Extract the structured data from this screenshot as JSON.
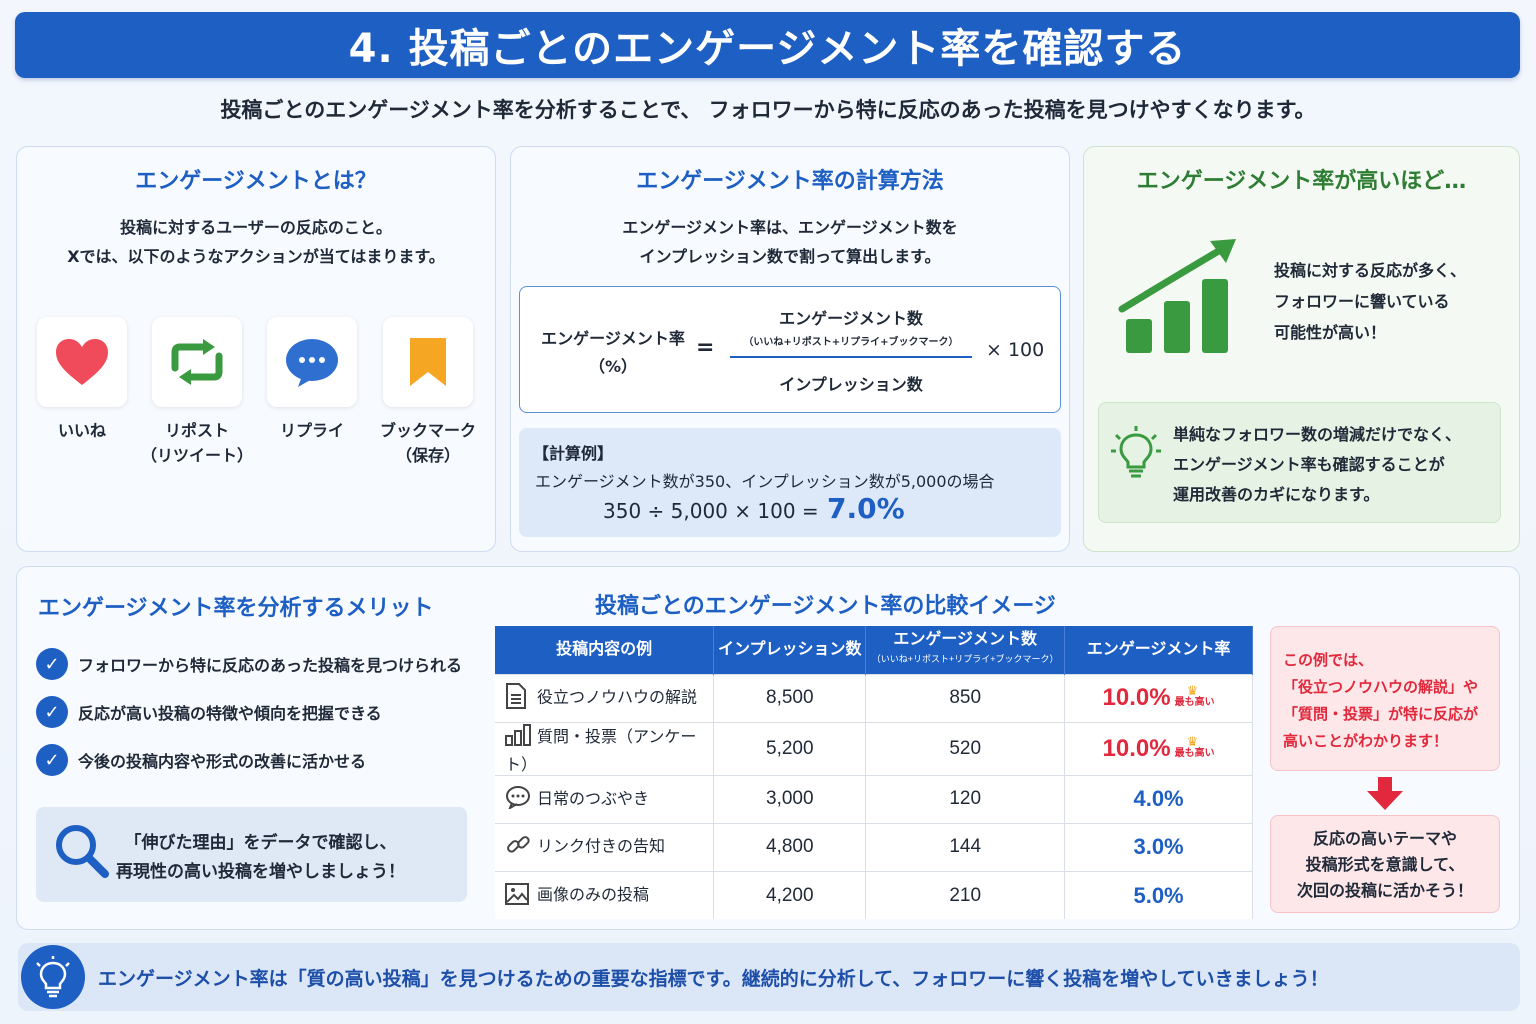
{
  "header": {
    "title": "4. 投稿ごとのエンゲージメント率を確認する",
    "subtitle": "投稿ごとのエンゲージメント率を分析することで、 フォロワーから特に反応のあった投稿を見つけやすくなります。"
  },
  "what_is": {
    "title": "エンゲージメントとは？",
    "line1": "投稿に対するユーザーの反応のこと。",
    "line2": "Xでは、以下のようなアクションが当てはまります。",
    "actions": [
      {
        "icon": "heart-icon",
        "line1": "いいね",
        "line2": ""
      },
      {
        "icon": "repost-icon",
        "line1": "リポスト",
        "line2": "（リツイート）"
      },
      {
        "icon": "reply-icon",
        "line1": "リプライ",
        "line2": ""
      },
      {
        "icon": "bookmark-icon",
        "line1": "ブックマーク",
        "line2": "（保存）"
      }
    ]
  },
  "calc": {
    "title": "エンゲージメント率の計算方法",
    "line1": "エンゲージメント率は、エンゲージメント数を",
    "line2": "インプレッション数で割って算出します。",
    "formula": {
      "lhs_line1": "エンゲージメント率",
      "lhs_line2": "（%）",
      "equals": "=",
      "numerator": "エンゲージメント数",
      "numerator_note": "（いいね+リポスト+リプライ+ブックマーク）",
      "denominator": "インプレッション数",
      "multiplier": "× 100"
    },
    "example": {
      "label": "【計算例】",
      "condition": "エンゲージメント数が350、インプレッション数が5,000の場合",
      "expression": "350 ÷ 5,000 × 100 =",
      "result": "7.0%"
    }
  },
  "high": {
    "title": "エンゲージメント率が高いほど…",
    "line1": "投稿に対する反応が多く、",
    "line2": "フォロワーに響いている",
    "line3": "可能性が高い！",
    "tip_line1": "単純なフォロワー数の増減だけでなく、",
    "tip_line2": "エンゲージメント率も確認することが",
    "tip_line3": "運用改善のカギになります。"
  },
  "merit": {
    "title": "エンゲージメント率を分析するメリット",
    "items": [
      "フォロワーから特に反応のあった投稿を見つけられる",
      "反応が高い投稿の特徴や傾向を把握できる",
      "今後の投稿内容や形式の改善に活かせる"
    ],
    "search_line1": "「伸びた理由」をデータで確認し、",
    "search_line2": "再現性の高い投稿を増やしましょう！"
  },
  "compare": {
    "title": "投稿ごとのエンゲージメント率の比較イメージ",
    "headers": {
      "name": "投稿内容の例",
      "impressions": "インプレッション数",
      "engagements": "エンゲージメント数",
      "engagements_note": "（いいね+リポスト+リプライ+ブックマーク）",
      "rate": "エンゲージメント率"
    },
    "best_label": "最も高い",
    "rows": [
      {
        "icon": "document-icon",
        "name": "役立つノウハウの解説",
        "impressions": "8,500",
        "engagements": "850",
        "rate": "10.0%",
        "best": true
      },
      {
        "icon": "bar-chart-icon",
        "name": "質問・投票（アンケート）",
        "impressions": "5,200",
        "engagements": "520",
        "rate": "10.0%",
        "best": true
      },
      {
        "icon": "chat-icon",
        "name": "日常のつぶやき",
        "impressions": "3,000",
        "engagements": "120",
        "rate": "4.0%",
        "best": false
      },
      {
        "icon": "link-icon",
        "name": "リンク付きの告知",
        "impressions": "4,800",
        "engagements": "144",
        "rate": "3.0%",
        "best": false
      },
      {
        "icon": "image-icon",
        "name": "画像のみの投稿",
        "impressions": "4,200",
        "engagements": "210",
        "rate": "5.0%",
        "best": false
      }
    ],
    "note_line1": "この例では、",
    "note_line2": "「役立つノウハウの解説」や",
    "note_line3": "「質問・投票」が特に反応が",
    "note_line4": "高いことがわかります！",
    "action_line1": "反応の高いテーマや",
    "action_line2": "投稿形式を意識して、",
    "action_line3": "次回の投稿に活かそう！"
  },
  "footer": {
    "text": "エンゲージメント率は「質の高い投稿」を見つけるための重要な指標です。継続的に分析して、フォロワーに響く投稿を増やしていきましょう！"
  },
  "colors": {
    "primary": "#1e5fc4",
    "green": "#3a9a3f",
    "red": "#e1283c",
    "heart": "#ef4b5a",
    "bookmark": "#f5a623"
  }
}
